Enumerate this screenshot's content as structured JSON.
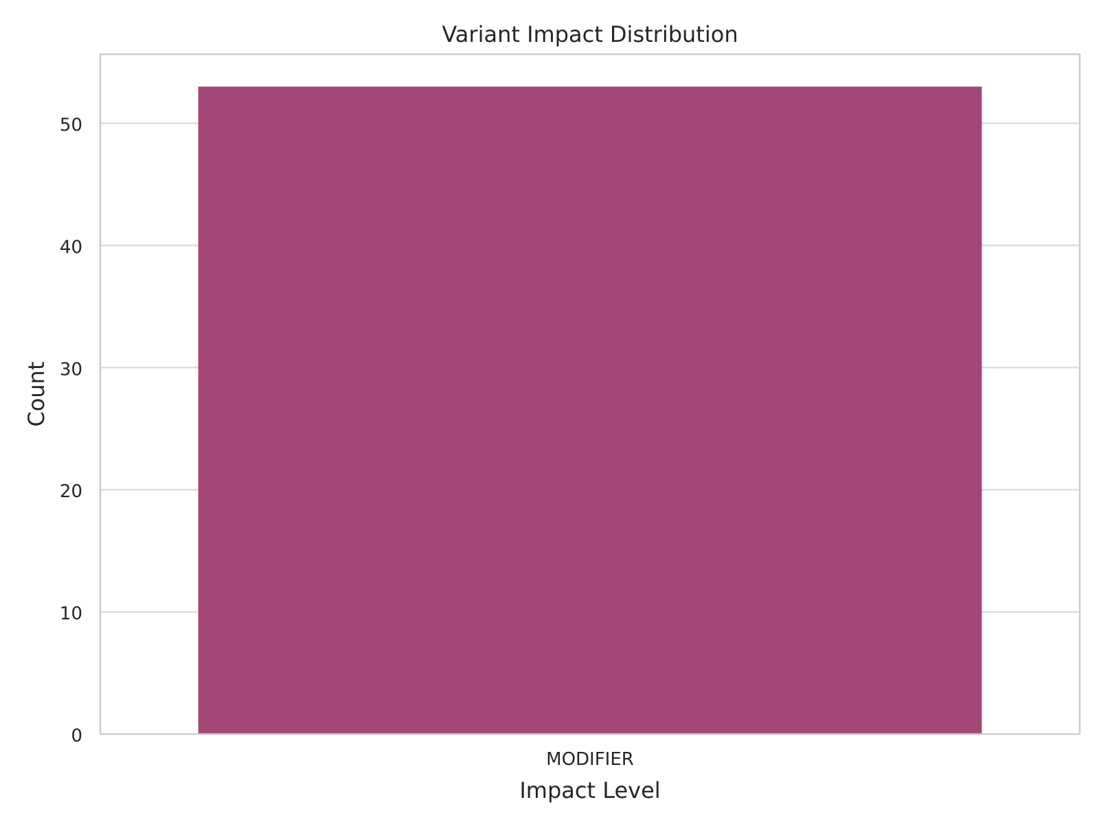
{
  "chart_data": {
    "type": "bar",
    "title": "Variant Impact Distribution",
    "xlabel": "Impact Level",
    "ylabel": "Count",
    "categories": [
      "MODIFIER"
    ],
    "values": [
      53
    ],
    "ylim": [
      0,
      55.65
    ],
    "yticks": [
      0,
      10,
      20,
      30,
      40,
      50
    ],
    "grid": true,
    "bar_color": "#a44776",
    "grid_color": "#dddddd",
    "spine_color": "#cccccc"
  }
}
